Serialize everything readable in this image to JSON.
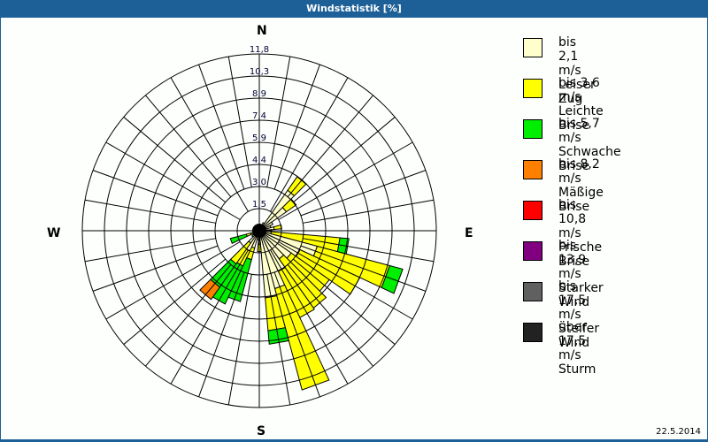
{
  "window": {
    "title": "Windstatistik [%]"
  },
  "compass": {
    "n": "N",
    "e": "E",
    "s": "S",
    "w": "W"
  },
  "footer": {
    "date": "22.5.2014"
  },
  "legend": [
    {
      "range": "bis 2,1 m/s",
      "name": "Leiser Zug",
      "color": "#ffffcc"
    },
    {
      "range": "bis 3,6 m/s",
      "name": "Leichte Brise",
      "color": "#ffff00"
    },
    {
      "range": "bis 5,7 m/s",
      "name": "Schwache Brise",
      "color": "#00ee00"
    },
    {
      "range": "bis 8,2 m/s",
      "name": "Mäßige Brise",
      "color": "#ff8000"
    },
    {
      "range": "bis 10,8 m/s",
      "name": "Frische Brise",
      "color": "#ff0000"
    },
    {
      "range": "bis 13,9 m/s",
      "name": "Starker Wind",
      "color": "#800080"
    },
    {
      "range": "bis 17,5 m/s",
      "name": "Steifer Wind",
      "color": "#606060"
    },
    {
      "range": "über 17,5 m/s",
      "name": "Sturm",
      "color": "#222222"
    }
  ],
  "chart_data": {
    "type": "wind-rose (stacked polar bar)",
    "title": "Windstatistik [%]",
    "radial_unit": "%",
    "radial_ticks": [
      "1,5",
      "3,0",
      "4,4",
      "5,9",
      "7,4",
      "8,9",
      "10,3",
      "11,8"
    ],
    "rmax": 11.8,
    "sector_width_deg": 10,
    "series_names": [
      "bis 2,1 m/s",
      "bis 3,6 m/s",
      "bis 5,7 m/s",
      "bis 8,2 m/s",
      "bis 10,8 m/s",
      "bis 13,9 m/s",
      "bis 17,5 m/s",
      "über 17,5 m/s"
    ],
    "sectors": [
      {
        "dir": 30,
        "values": [
          0.6,
          0.0
        ]
      },
      {
        "dir": 40,
        "values": [
          3.3,
          1.1
        ]
      },
      {
        "dir": 50,
        "values": [
          2.2,
          0.8
        ]
      },
      {
        "dir": 60,
        "values": [
          1.0
        ]
      },
      {
        "dir": 70,
        "values": [
          0.8
        ]
      },
      {
        "dir": 80,
        "values": [
          1.0,
          0.5
        ]
      },
      {
        "dir": 90,
        "values": [
          0.8
        ]
      },
      {
        "dir": 100,
        "values": [
          0.8,
          4.6,
          0.6
        ]
      },
      {
        "dir": 110,
        "values": [
          4.0,
          5.0,
          0.9
        ]
      },
      {
        "dir": 120,
        "values": [
          3.0,
          4.4
        ]
      },
      {
        "dir": 130,
        "values": [
          2.6,
          3.1
        ]
      },
      {
        "dir": 140,
        "values": [
          2.3,
          4.0
        ]
      },
      {
        "dir": 150,
        "values": [
          3.0,
          3.4
        ]
      },
      {
        "dir": 160,
        "values": [
          4.0,
          7.0
        ]
      },
      {
        "dir": 170,
        "values": [
          4.5,
          2.2,
          0.9
        ]
      },
      {
        "dir": 180,
        "values": [
          0.9,
          0.5
        ]
      },
      {
        "dir": 190,
        "values": [
          0.6
        ]
      },
      {
        "dir": 200,
        "values": [
          1.2,
          0.8,
          2.9
        ]
      },
      {
        "dir": 210,
        "values": [
          1.5,
          1.1,
          2.8
        ]
      },
      {
        "dir": 220,
        "values": [
          1.0,
          1.7,
          1.9,
          1.0
        ]
      },
      {
        "dir": 230,
        "values": [
          0.6
        ]
      },
      {
        "dir": 240,
        "values": [
          0.5
        ]
      },
      {
        "dir": 250,
        "values": [
          0.6,
          0.3,
          1.1
        ]
      },
      {
        "dir": 260,
        "values": [
          0.4
        ]
      }
    ]
  }
}
